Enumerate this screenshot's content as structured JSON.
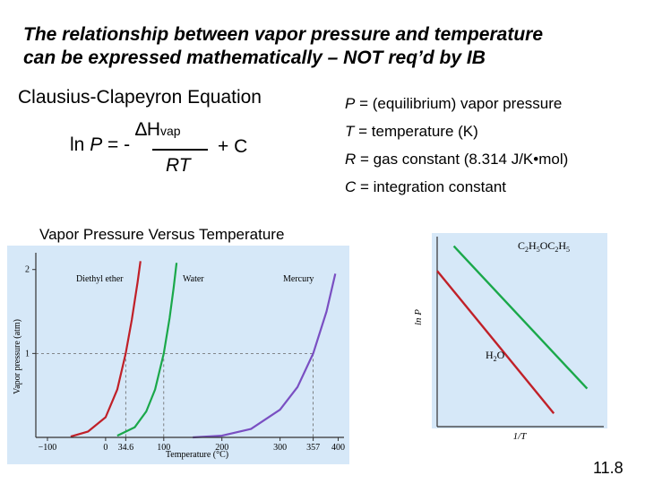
{
  "title_line1": "The relationship between vapor pressure and temperature",
  "title_line2": "can be expressed mathematically – NOT req’d by IB",
  "equation": {
    "heading": "Clausius-Clapeyron Equation",
    "lhs_prefix": "ln ",
    "lhs_var": "P",
    "lhs_suffix": " = -",
    "numerator": "∆H",
    "numerator_sub": "vap",
    "denominator": "RT",
    "plus_term": "+ C"
  },
  "definitions": [
    {
      "symbol": "P",
      "text": " = (equilibrium) vapor pressure"
    },
    {
      "symbol": "T",
      "text": " = temperature (K)"
    },
    {
      "symbol": "R",
      "text": " = gas constant (8.314 J/K•mol)"
    },
    {
      "symbol": "C",
      "text": " = integration constant"
    }
  ],
  "chart_caption": "Vapor Pressure Versus Temperature",
  "page_number": "11.8",
  "colors": {
    "panel": "#d6e8f8",
    "diethyl": "#c02028",
    "water": "#1aa84a",
    "mercury": "#7a4fc2",
    "axis": "#333333"
  },
  "chart_data": [
    {
      "type": "line",
      "xlabel": "Temperature (°C)",
      "ylabel": "Vapor pressure (atm)",
      "xlim": [
        -120,
        410
      ],
      "ylim": [
        0,
        2.2
      ],
      "x_ticks": [
        "−100",
        "0",
        "34.6",
        "100",
        "200",
        "300",
        "357",
        "400"
      ],
      "x_tick_values": [
        -100,
        0,
        34.6,
        100,
        200,
        300,
        357,
        400
      ],
      "y_ticks": [
        "1",
        "2"
      ],
      "y_tick_values": [
        1,
        2
      ],
      "reference_lines": {
        "y": 1,
        "x": [
          34.6,
          100,
          357
        ]
      },
      "series": [
        {
          "name": "Diethyl ether",
          "x": [
            -60,
            -30,
            0,
            20,
            34.6,
            45,
            55,
            60
          ],
          "y": [
            0.01,
            0.07,
            0.24,
            0.57,
            1.0,
            1.4,
            1.85,
            2.1
          ]
        },
        {
          "name": "Water",
          "x": [
            20,
            50,
            70,
            85,
            100,
            110,
            117,
            122
          ],
          "y": [
            0.02,
            0.12,
            0.31,
            0.57,
            1.0,
            1.42,
            1.78,
            2.08
          ]
        },
        {
          "name": "Mercury",
          "x": [
            150,
            200,
            250,
            300,
            330,
            357,
            380,
            395
          ],
          "y": [
            0.0,
            0.02,
            0.1,
            0.33,
            0.6,
            1.0,
            1.5,
            1.95
          ]
        }
      ]
    },
    {
      "type": "line",
      "xlabel": "1/T",
      "ylabel": "ln P",
      "series": [
        {
          "name": "C2H5OC2H5",
          "x": [
            0.1,
            0.9
          ],
          "y": [
            0.95,
            0.2
          ]
        },
        {
          "name": "H2O",
          "x": [
            0.0,
            0.7
          ],
          "y": [
            0.82,
            0.07
          ]
        }
      ],
      "labels": {
        "ether_main": "C",
        "ether_s1": "2",
        "ether_m1": "H",
        "ether_s2": "5",
        "ether_m2": "OC",
        "ether_s3": "2",
        "ether_m3": "H",
        "ether_s4": "5",
        "water_main": "H",
        "water_s1": "2",
        "water_m1": "O"
      }
    }
  ]
}
